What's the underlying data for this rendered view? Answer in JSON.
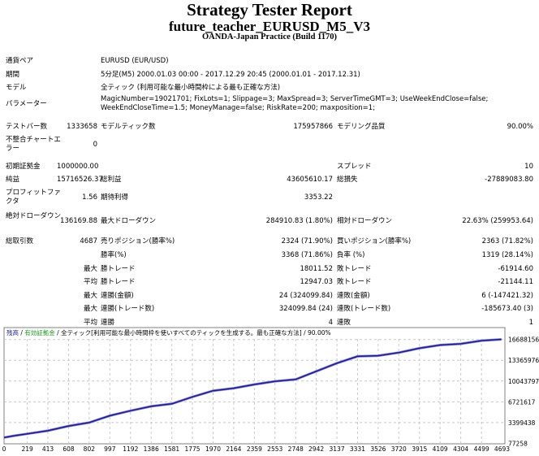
{
  "header": {
    "title": "Strategy Tester Report",
    "subtitle": "future_teacher_EURUSD_M5_V3",
    "build": "OANDA-Japan Practice (Build 1170)"
  },
  "summary": [
    {
      "label": "通貨ペア",
      "value": "EURUSD (EUR/USD)"
    },
    {
      "label": "期間",
      "value": "5分足(M5) 2000.01.03 00:00 - 2017.12.29 20:45 (2000.01.01 - 2017.12.31)"
    },
    {
      "label": "モデル",
      "value": "全ティック (利用可能な最小時間枠による最も正確な方法)"
    },
    {
      "label": "パラメーター",
      "value": "MagicNumber=19021701; FixLots=1; Slippage=3; MaxSpread=3; ServerTimeGMT=3; UseWeekEndClose=false; WeekEndCloseTime=1.5; MoneyManage=false; RiskRate=200; maxposition=1;"
    }
  ],
  "stats": [
    [
      "テストバー数",
      "1333658",
      "モデルティック数",
      "175957866",
      "モデリング品質",
      "90.00%"
    ],
    [
      "不整合チャートエラー",
      "0",
      "",
      "",
      "",
      ""
    ],
    [
      "初期証拠金",
      "1000000.00",
      "",
      "",
      "スプレッド",
      "10"
    ],
    [
      "純益",
      "15716526.37",
      "総利益",
      "43605610.17",
      "総損失",
      "-27889083.80"
    ],
    [
      "プロフィットファクタ",
      "1.56",
      "期待利得",
      "3353.22",
      "",
      ""
    ],
    [
      "絶対ドローダウン",
      "136169.88",
      "最大ドローダウン",
      "284910.83 (1.80%)",
      "相対ドローダウン",
      "22.63% (259953.64)"
    ],
    [
      "総取引数",
      "4687",
      "売りポジション(勝率%)",
      "2324 (71.90%)",
      "買いポジション(勝率%)",
      "2363 (71.82%)"
    ],
    [
      "",
      "",
      "勝率(%)",
      "3368 (71.86%)",
      "負率 (%)",
      "1319 (28.14%)"
    ],
    [
      "",
      "最大",
      "勝トレード",
      "18011.52",
      "敗トレード",
      "-61914.60"
    ],
    [
      "",
      "平均",
      "勝トレード",
      "12947.03",
      "敗トレード",
      "-21144.11"
    ],
    [
      "",
      "最大",
      "連勝(金額)",
      "24 (324099.84)",
      "連敗(金額)",
      "6 (-147421.32)"
    ],
    [
      "",
      "最大",
      "連勝(トレード数)",
      "324099.84 (24)",
      "連敗(トレード数)",
      "-185673.40 (3)"
    ],
    [
      "",
      "平均",
      "連勝",
      "4",
      "連敗",
      "1"
    ]
  ],
  "chart_data": {
    "type": "line",
    "legend": {
      "balance": "残高",
      "sep1": " / ",
      "equity": "有効証拠金",
      "sep2": " / ",
      "model": "全ティック[利用可能な最小時間枠を使いすべてのティックを生成する。最も正確な方法]",
      "sep3": " / ",
      "quality": "90.00%"
    },
    "colors": {
      "balance": "#1a1a9c",
      "equity": "#1a9a1a",
      "grid": "#c8c8c8"
    },
    "grid": true,
    "x_ticks": [
      0,
      219,
      413,
      608,
      802,
      997,
      1192,
      1386,
      1581,
      1775,
      1970,
      2164,
      2359,
      2553,
      2748,
      2942,
      3137,
      3331,
      3526,
      3720,
      3915,
      4109,
      4304,
      4499,
      4693
    ],
    "y_ticks": [
      77258,
      3399438,
      6721617,
      10043797,
      13365976,
      16688156
    ],
    "xlim": [
      0,
      4720
    ],
    "ylim": [
      0,
      18600000
    ],
    "series": [
      {
        "x": [
          0,
          100,
          219,
          413,
          608,
          802,
          997,
          1192,
          1386,
          1581,
          1775,
          1970,
          2164,
          2359,
          2553,
          2748,
          2942,
          3137,
          3331,
          3526,
          3720,
          3915,
          4109,
          4304,
          4499,
          4687
        ],
        "y": [
          1000000,
          1300000,
          1600000,
          2100000,
          2850000,
          3400000,
          4500000,
          5300000,
          6000000,
          6400000,
          7500000,
          8500000,
          8900000,
          9500000,
          10000000,
          10300000,
          11600000,
          12900000,
          14000000,
          14100000,
          14600000,
          15300000,
          15800000,
          16000000,
          16500000,
          16716526
        ]
      }
    ]
  }
}
